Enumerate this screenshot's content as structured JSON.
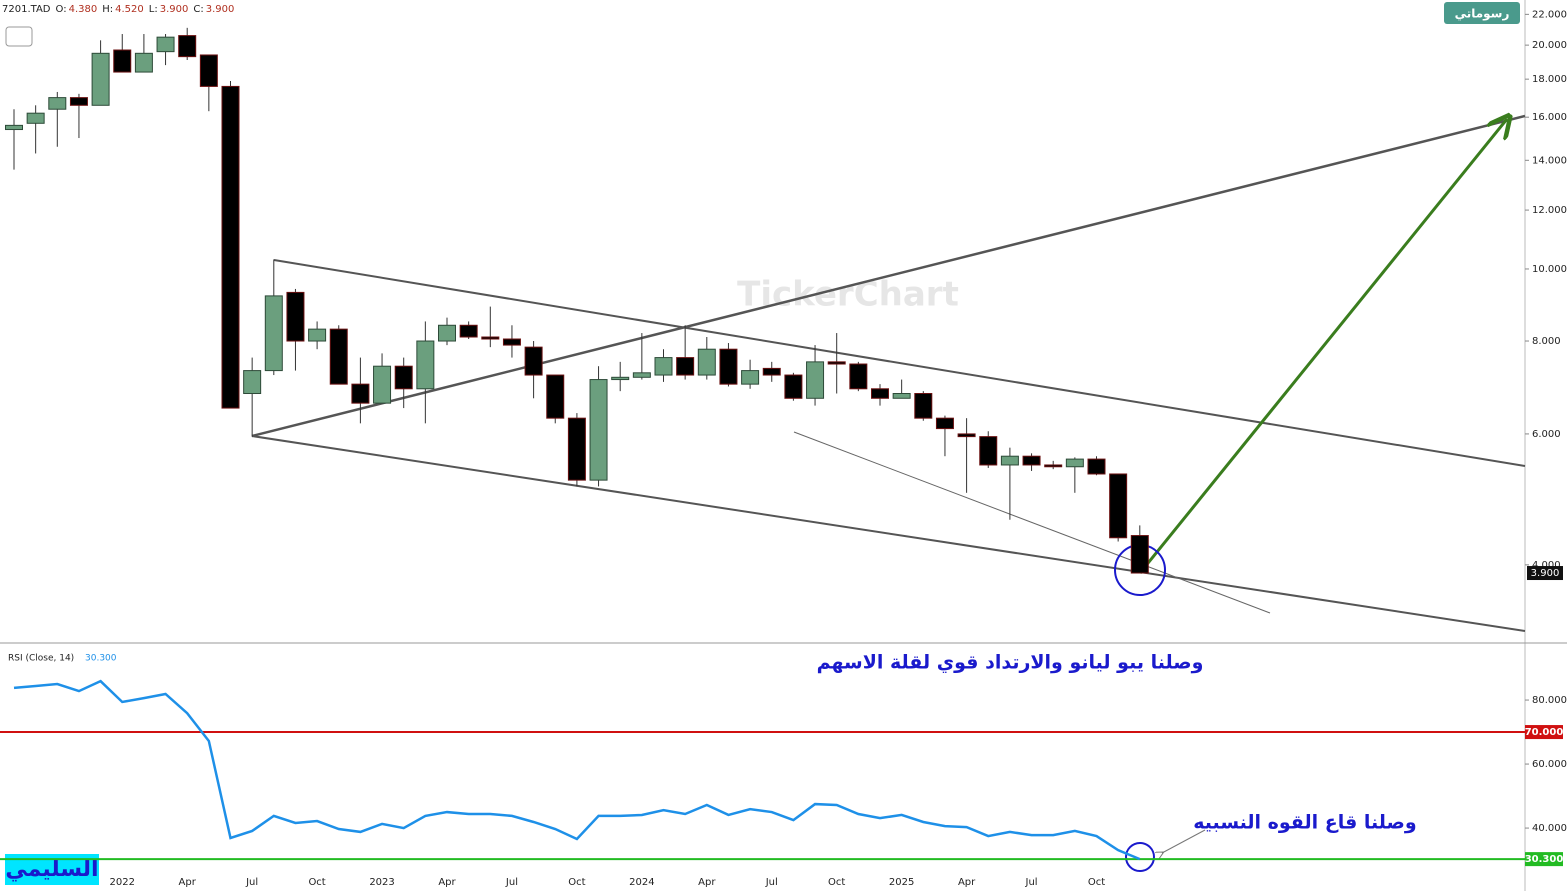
{
  "chart_data": [
    {
      "type": "candlestick",
      "header": [
        "7201.TAD",
        "O:",
        "4.380",
        "H:",
        "4.520",
        "L:",
        "3.900",
        "C:",
        "3.900"
      ],
      "watermark": "TickerChart",
      "button": "رسوماتي",
      "annotation": "وصلنا يبو ليانو  والارتداد قوي لقلة الاسهم",
      "signature": "السليمي",
      "log_scale": true,
      "up_color": "#6b9f7e",
      "down_color": "#000000",
      "categories": [
        null,
        null,
        null,
        null,
        null,
        "2022",
        null,
        null,
        "Apr",
        null,
        null,
        "Jul",
        null,
        null,
        "Oct",
        null,
        null,
        "2023",
        null,
        null,
        "Apr",
        null,
        null,
        "Jul",
        null,
        null,
        "Oct",
        null,
        null,
        "2024",
        null,
        null,
        "Apr",
        null,
        null,
        "Jul",
        null,
        null,
        "Oct",
        null,
        null,
        "2025",
        null,
        null,
        "Apr",
        null,
        null,
        "Jul",
        null,
        null,
        "Oct",
        null,
        null
      ],
      "open": [
        15.4,
        15.7,
        16.4,
        17.0,
        16.6,
        19.7,
        18.4,
        19.6,
        20.6,
        19.4,
        17.6,
        6.8,
        7.3,
        9.3,
        8.0,
        8.3,
        7.0,
        6.6,
        7.4,
        6.9,
        8.0,
        8.4,
        8.1,
        8.05,
        7.85,
        7.2,
        6.3,
        5.2,
        7.1,
        7.15,
        7.2,
        7.6,
        7.2,
        7.8,
        7.0,
        7.35,
        7.2,
        6.7,
        7.5,
        7.45,
        6.9,
        6.7,
        6.8,
        6.3,
        6.0,
        5.95,
        5.45,
        5.6,
        5.45,
        5.42,
        5.55,
        5.3,
        4.38
      ],
      "high": [
        16.4,
        16.6,
        17.3,
        17.2,
        20.3,
        20.7,
        20.7,
        20.7,
        21.1,
        19.4,
        17.9,
        7.6,
        10.3,
        9.4,
        8.5,
        8.4,
        7.6,
        7.7,
        7.6,
        8.5,
        8.6,
        8.5,
        8.9,
        8.4,
        8.0,
        7.2,
        6.4,
        7.4,
        7.5,
        8.2,
        7.8,
        8.4,
        8.1,
        7.95,
        7.55,
        7.5,
        7.25,
        7.9,
        8.2,
        7.5,
        7.0,
        7.1,
        6.85,
        6.35,
        6.3,
        6.05,
        5.75,
        5.65,
        5.52,
        5.58,
        5.6,
        5.3,
        4.52
      ],
      "low": [
        13.6,
        14.3,
        14.6,
        15.0,
        16.6,
        18.4,
        18.4,
        18.8,
        19.1,
        16.3,
        6.5,
        5.95,
        7.2,
        7.3,
        7.8,
        7.0,
        6.2,
        6.6,
        6.5,
        6.2,
        7.9,
        8.05,
        7.85,
        7.6,
        6.7,
        6.2,
        5.1,
        5.1,
        6.85,
        7.1,
        7.05,
        7.1,
        7.1,
        6.95,
        6.9,
        7.05,
        6.65,
        6.55,
        6.8,
        6.85,
        6.55,
        6.7,
        6.25,
        5.6,
        5.0,
        5.4,
        4.6,
        5.35,
        5.38,
        5.0,
        5.28,
        4.3,
        3.9
      ],
      "close": [
        15.6,
        16.2,
        17.0,
        16.6,
        19.5,
        18.4,
        19.5,
        20.5,
        19.3,
        17.6,
        6.5,
        7.3,
        9.2,
        8.0,
        8.3,
        7.0,
        6.6,
        7.4,
        6.9,
        8.0,
        8.4,
        8.1,
        8.05,
        7.9,
        7.2,
        6.3,
        5.2,
        7.1,
        7.15,
        7.25,
        7.6,
        7.2,
        7.8,
        7.0,
        7.3,
        7.2,
        6.7,
        7.5,
        7.45,
        6.9,
        6.7,
        6.8,
        6.3,
        6.1,
        5.95,
        5.45,
        5.6,
        5.45,
        5.42,
        5.55,
        5.3,
        4.35,
        3.9
      ],
      "ylim": [
        3.15,
        23
      ],
      "yticks": [
        {
          "value": 4,
          "label": "4.000"
        },
        {
          "value": 6,
          "label": "6.000"
        },
        {
          "value": 8,
          "label": "8.000"
        },
        {
          "value": 10,
          "label": "10.000"
        },
        {
          "value": 12,
          "label": "12.000"
        },
        {
          "value": 14,
          "label": "14.000"
        },
        {
          "value": 16,
          "label": "16.000"
        },
        {
          "value": 18,
          "label": "18.000"
        },
        {
          "value": 20,
          "label": "20.000"
        },
        {
          "value": 22,
          "label": "22.000"
        }
      ],
      "last": {
        "value": 3.9,
        "label": "3.900"
      }
    },
    {
      "type": "line",
      "title": "RSI  (Close, 14)",
      "current": {
        "value": 30.3,
        "label": "30.300"
      },
      "annotation": "وصلنا قاع القوه النسبيه",
      "color": "#1e90e8",
      "values": [
        83.8,
        84.4,
        85,
        82.8,
        85.9,
        79.4,
        80.6,
        81.9,
        75.9,
        67.2,
        36.9,
        39.1,
        43.8,
        41.6,
        42.2,
        39.7,
        38.8,
        41.3,
        40,
        43.8,
        45,
        44.4,
        44.4,
        43.8,
        41.9,
        39.7,
        36.6,
        43.8,
        43.8,
        44.1,
        45.6,
        44.4,
        47.2,
        44.1,
        45.9,
        45,
        42.5,
        47.5,
        47.2,
        44.4,
        43.1,
        44.1,
        41.9,
        40.6,
        40.3,
        37.5,
        38.8,
        37.8,
        37.8,
        39.1,
        37.5,
        33.1,
        30.3
      ],
      "ylim": [
        21.9,
        97.2
      ],
      "yticks": [
        {
          "value": 40,
          "label": "40.000"
        },
        {
          "value": 60,
          "label": "60.000"
        },
        {
          "value": 80,
          "label": "80.000"
        }
      ],
      "levels": [
        {
          "value": 70,
          "label": "70.000",
          "color": "#d01010"
        },
        {
          "value": 30.3,
          "label": "30.300",
          "color": "#22bb22"
        }
      ]
    }
  ]
}
